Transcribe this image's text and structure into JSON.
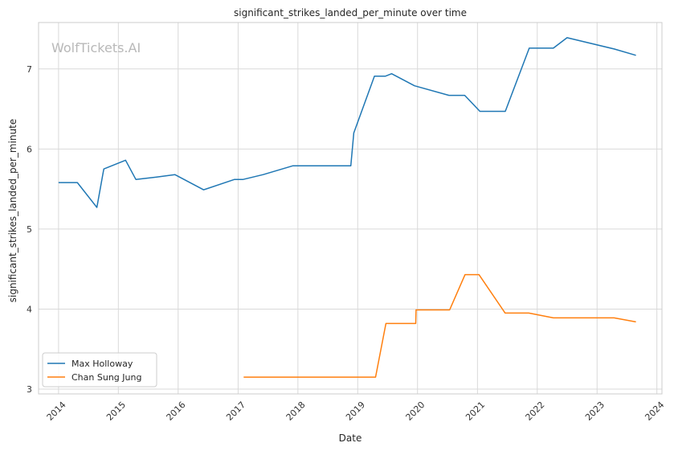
{
  "chart_data": {
    "type": "line",
    "title": "significant_strikes_landed_per_minute over time",
    "xlabel": "Date",
    "ylabel": "significant_strikes_landed_per_minute",
    "watermark": "WolfTickets.AI",
    "x_ticks": [
      "2014",
      "2015",
      "2016",
      "2017",
      "2018",
      "2019",
      "2020",
      "2021",
      "2022",
      "2023",
      "2024"
    ],
    "y_ticks": [
      3,
      4,
      5,
      6,
      7
    ],
    "xlim": [
      "2013-09-01",
      "2024-02-01"
    ],
    "ylim": [
      2.94,
      7.58
    ],
    "grid": true,
    "legend_position": "lower-left",
    "series": [
      {
        "name": "Max Holloway",
        "color": "#1f77b4",
        "points": [
          [
            "2014-01-01",
            5.58
          ],
          [
            "2014-04-26",
            5.58
          ],
          [
            "2014-08-23",
            5.27
          ],
          [
            "2014-10-04",
            5.75
          ],
          [
            "2015-02-14",
            5.86
          ],
          [
            "2015-04-18",
            5.62
          ],
          [
            "2015-08-23",
            5.65
          ],
          [
            "2015-12-12",
            5.68
          ],
          [
            "2016-06-04",
            5.49
          ],
          [
            "2016-12-10",
            5.62
          ],
          [
            "2017-02-01",
            5.62
          ],
          [
            "2017-06-03",
            5.68
          ],
          [
            "2017-12-02",
            5.79
          ],
          [
            "2018-11-20",
            5.79
          ],
          [
            "2018-12-08",
            6.2
          ],
          [
            "2019-04-13",
            6.91
          ],
          [
            "2019-06-20",
            6.91
          ],
          [
            "2019-07-27",
            6.94
          ],
          [
            "2019-12-14",
            6.79
          ],
          [
            "2020-07-11",
            6.67
          ],
          [
            "2020-10-15",
            6.67
          ],
          [
            "2021-01-16",
            6.47
          ],
          [
            "2021-06-20",
            6.47
          ],
          [
            "2021-11-13",
            7.26
          ],
          [
            "2022-04-09",
            7.26
          ],
          [
            "2022-07-02",
            7.39
          ],
          [
            "2023-04-15",
            7.25
          ],
          [
            "2023-08-26",
            7.17
          ]
        ]
      },
      {
        "name": "Chan Sung Jung",
        "color": "#ff7f0e",
        "points": [
          [
            "2017-02-04",
            3.15
          ],
          [
            "2019-04-20",
            3.15
          ],
          [
            "2019-06-22",
            3.82
          ],
          [
            "2019-12-21",
            3.82
          ],
          [
            "2019-12-23",
            3.99
          ],
          [
            "2020-07-15",
            3.99
          ],
          [
            "2020-10-17",
            4.43
          ],
          [
            "2021-01-10",
            4.43
          ],
          [
            "2021-06-19",
            3.95
          ],
          [
            "2021-11-10",
            3.95
          ],
          [
            "2022-04-09",
            3.89
          ],
          [
            "2023-04-15",
            3.89
          ],
          [
            "2023-08-26",
            3.84
          ]
        ]
      }
    ]
  }
}
